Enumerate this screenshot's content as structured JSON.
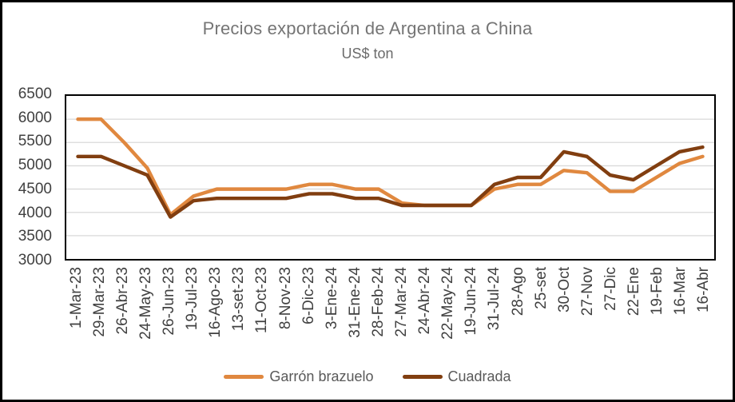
{
  "chart_data": {
    "type": "line",
    "title": "Precios exportación de Argentina a China",
    "subtitle": "US$ ton",
    "categories": [
      "1-Mar-23",
      "29-Mar-23",
      "26-Abr-23",
      "24-May-23",
      "26-Jun-23",
      "19-Jul-23",
      "16-Ago-23",
      "13-set-23",
      "11-Oct-23",
      "8-Nov-23",
      "6-Dic-23",
      "3-Ene-24",
      "31-Ene-24",
      "28-Feb-24",
      "27-Mar-24",
      "24-Abr-24",
      "22-May-24",
      "19-Jun-24",
      "31-Jul-24",
      "28-Ago",
      "25-set",
      "30-Oct",
      "27-Nov",
      "27-Dic",
      "22-Ene",
      "19-Feb",
      "16-Mar",
      "16-Abr"
    ],
    "series": [
      {
        "name": "Garrón brazuelo",
        "color": "#E0883F",
        "values": [
          6000,
          6000,
          5500,
          4950,
          3950,
          4350,
          4500,
          4500,
          4500,
          4500,
          4600,
          4600,
          4500,
          4500,
          4200,
          4150,
          4150,
          4150,
          4500,
          4600,
          4600,
          4900,
          4850,
          4450,
          4450,
          4750,
          5050,
          5200
        ]
      },
      {
        "name": "Cuadrada",
        "color": "#813E10",
        "values": [
          5200,
          5200,
          5000,
          4800,
          3900,
          4250,
          4300,
          4300,
          4300,
          4300,
          4400,
          4400,
          4300,
          4300,
          4150,
          4150,
          4150,
          4150,
          4600,
          4750,
          4750,
          5300,
          5200,
          4800,
          4700,
          5000,
          5300,
          5400
        ]
      }
    ],
    "ylim": [
      3000,
      6500
    ],
    "y_ticks": [
      6500,
      6000,
      5500,
      5000,
      4500,
      4000,
      3500,
      3000
    ],
    "grid": true,
    "legend_position": "bottom"
  },
  "colors": {
    "grid": "#D9D9D9",
    "axis_border": "#000000",
    "title_text": "#757575",
    "axis_text": "#404040",
    "legend_text": "#595959"
  }
}
